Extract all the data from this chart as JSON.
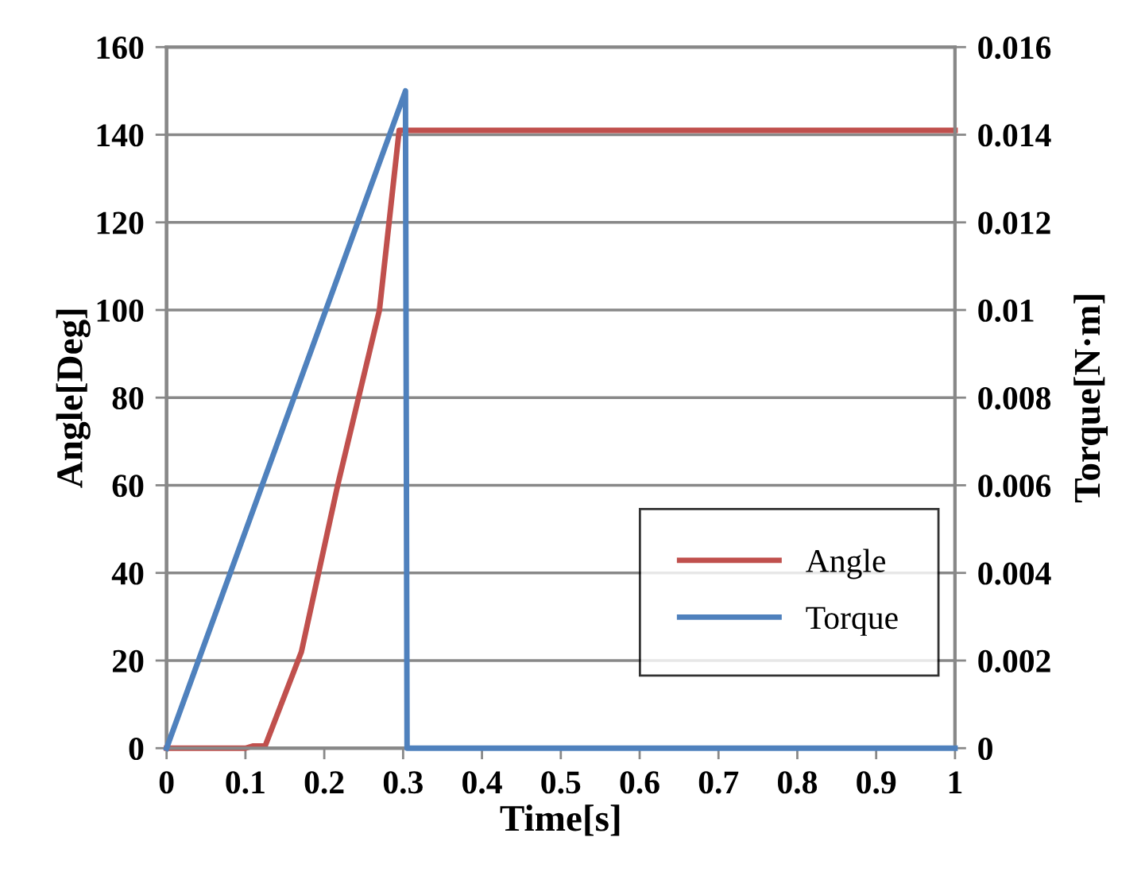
{
  "chart_data": {
    "type": "line",
    "xlabel": "Time[s]",
    "ylabel": "Angle[Deg]",
    "y2label": "Torque[N·m]",
    "xlim": [
      0,
      1
    ],
    "xticks": [
      0,
      0.1,
      0.2,
      0.3,
      0.4,
      0.5,
      0.6,
      0.7,
      0.8,
      0.9,
      1
    ],
    "ylim": [
      0,
      160
    ],
    "yticks": [
      0,
      20,
      40,
      60,
      80,
      100,
      120,
      140,
      160
    ],
    "y2lim": [
      0,
      0.016
    ],
    "y2ticks": [
      0,
      0.002,
      0.004,
      0.006,
      0.008,
      0.01,
      0.012,
      0.014,
      0.016
    ],
    "grid": "y",
    "legend": "bottom right",
    "marker": "none",
    "line_style": "solid",
    "series": [
      {
        "name": "Angle",
        "color": "#c0504d",
        "x": [
          0,
          0.1,
          0.11,
          0.125,
          0.171,
          0.217,
          0.27,
          0.295,
          0.31,
          1
        ],
        "values": [
          0,
          0,
          0.5,
          0.5,
          22,
          60,
          100,
          141,
          141,
          141
        ]
      },
      {
        "name": "Torque",
        "color": "#4f81bd",
        "axis": "y2",
        "x": [
          0,
          0.303,
          0.305,
          1
        ],
        "values": [
          0,
          0.015,
          0,
          0
        ]
      }
    ]
  }
}
